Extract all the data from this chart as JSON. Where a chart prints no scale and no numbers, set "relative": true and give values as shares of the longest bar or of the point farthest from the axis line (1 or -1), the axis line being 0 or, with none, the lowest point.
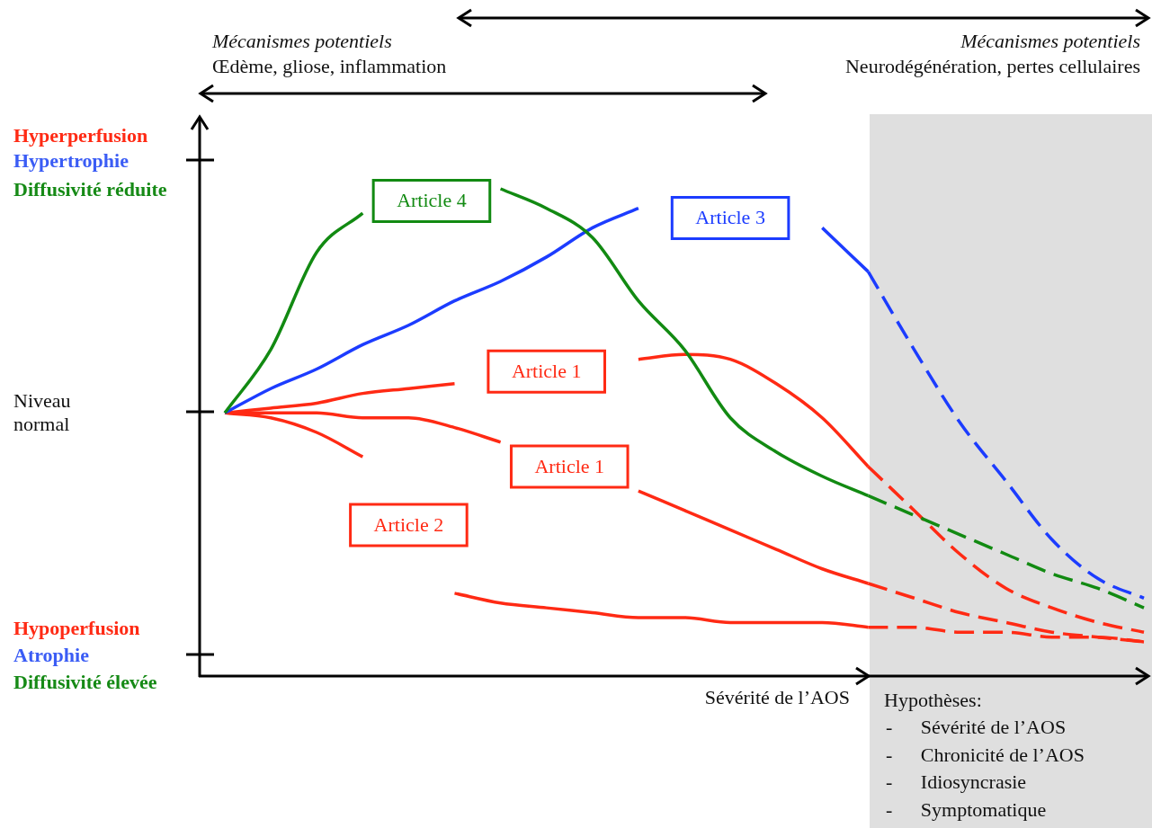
{
  "chart_data": {
    "type": "line",
    "relative": true,
    "marker": "none",
    "xlabel": "Sévérité de l’AOS",
    "categories": [
      null,
      null,
      null,
      null,
      null,
      null,
      null,
      null,
      null,
      null,
      null,
      null,
      null,
      null,
      null,
      null,
      null,
      null,
      null,
      null,
      null
    ],
    "annotations": [
      "Mécanismes potentiels",
      "Œdème, gliose, inflammation",
      "Mécanismes potentiels",
      "Neurodégénération, pertes cellulaires",
      "Hyperperfusion",
      "Hypertrophie",
      "Diffusivité réduite",
      "Niveau normal",
      "Hypoperfusion",
      "Atrophie",
      "Diffusivité élevée",
      "Hypothèses:",
      "- Sévérité de l’AOS",
      "- Chronicité de l’AOS",
      "- Idiosyncrasie",
      "- Symptomatique"
    ],
    "series": [
      {
        "name": "Article 4",
        "color": "#128a12",
        "line_style": "solid",
        "values": [
          0.54,
          0.67,
          0.87,
          0.95,
          null,
          null,
          1.0,
          0.96,
          0.9,
          0.77,
          0.67,
          0.53,
          0.46,
          0.41,
          0.37,
          null,
          null,
          null,
          null,
          null,
          null
        ]
      },
      {
        "color": "#128a12",
        "line_style": "dashed",
        "values": [
          null,
          null,
          null,
          null,
          null,
          null,
          null,
          null,
          null,
          null,
          null,
          null,
          null,
          null,
          0.37,
          0.33,
          0.29,
          0.25,
          0.21,
          0.18,
          0.14
        ]
      },
      {
        "name": "Article 3",
        "color": "#1c3cff",
        "line_style": "solid",
        "values": [
          0.54,
          0.59,
          0.63,
          0.68,
          0.72,
          0.77,
          0.81,
          0.86,
          0.92,
          0.96,
          null,
          null,
          null,
          0.92,
          0.83,
          null,
          null,
          null,
          null,
          null,
          null
        ]
      },
      {
        "color": "#1c3cff",
        "line_style": "dashed",
        "values": [
          null,
          null,
          null,
          null,
          null,
          null,
          null,
          null,
          null,
          null,
          null,
          null,
          null,
          null,
          0.83,
          0.67,
          0.52,
          0.4,
          0.28,
          0.2,
          0.16
        ]
      },
      {
        "name": "Article 1",
        "color": "#ff2a14",
        "line_style": "solid",
        "values": [
          0.54,
          0.55,
          0.56,
          0.58,
          0.59,
          0.6,
          null,
          null,
          null,
          0.65,
          0.66,
          0.65,
          0.6,
          0.53,
          0.43,
          null,
          null,
          null,
          null,
          null,
          null
        ]
      },
      {
        "color": "#ff2a14",
        "line_style": "dashed",
        "values": [
          null,
          null,
          null,
          null,
          null,
          null,
          null,
          null,
          null,
          null,
          null,
          null,
          null,
          null,
          0.43,
          0.34,
          0.25,
          0.18,
          0.14,
          0.11,
          0.09
        ]
      },
      {
        "name": "Article 1",
        "color": "#ff2a14",
        "line_style": "solid",
        "values": [
          0.54,
          0.54,
          0.54,
          0.53,
          0.53,
          0.51,
          0.48,
          null,
          null,
          0.38,
          0.34,
          0.3,
          0.26,
          0.22,
          0.19,
          null,
          null,
          null,
          null,
          null,
          null
        ]
      },
      {
        "color": "#ff2a14",
        "line_style": "dashed",
        "values": [
          null,
          null,
          null,
          null,
          null,
          null,
          null,
          null,
          null,
          null,
          null,
          null,
          null,
          null,
          0.19,
          0.16,
          0.13,
          0.11,
          0.09,
          0.08,
          0.07
        ]
      },
      {
        "name": "Article 2",
        "color": "#ff2a14",
        "line_style": "solid",
        "values": [
          0.54,
          0.53,
          0.5,
          0.45,
          null,
          0.17,
          0.15,
          0.14,
          0.13,
          0.12,
          0.12,
          0.11,
          0.11,
          0.11,
          0.1,
          null,
          null,
          null,
          null,
          null,
          null
        ]
      },
      {
        "color": "#ff2a14",
        "line_style": "dashed",
        "values": [
          null,
          null,
          null,
          null,
          null,
          null,
          null,
          null,
          null,
          null,
          null,
          null,
          null,
          null,
          0.1,
          0.1,
          0.09,
          0.09,
          0.08,
          0.08,
          0.07
        ]
      }
    ]
  }
}
